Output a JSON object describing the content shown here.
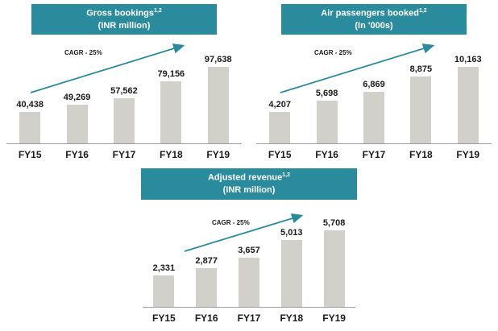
{
  "colors": {
    "accent": "#2a8b9d",
    "bar": "#d2d0ca",
    "text": "#1a1a1a"
  },
  "chart_data": [
    {
      "type": "bar",
      "title": "Gross bookings",
      "title_superscript": "1,2",
      "subtitle": "(INR million)",
      "annotation": "CAGR - 25%",
      "categories": [
        "FY15",
        "FY16",
        "FY17",
        "FY18",
        "FY19"
      ],
      "values": [
        40438,
        49269,
        57562,
        79156,
        97638
      ],
      "value_labels": [
        "40,438",
        "49,269",
        "57,562",
        "79,156",
        "97,638"
      ],
      "xlabel": "",
      "ylabel": "",
      "ylim": [
        0,
        100000
      ],
      "grid": false,
      "legend": "none"
    },
    {
      "type": "bar",
      "title": "Air passengers booked",
      "title_superscript": "1,2",
      "subtitle": "(In '000s)",
      "annotation": "CAGR - 25%",
      "categories": [
        "FY15",
        "FY16",
        "FY17",
        "FY18",
        "FY19"
      ],
      "values": [
        4207,
        5698,
        6869,
        8875,
        10163
      ],
      "value_labels": [
        "4,207",
        "5,698",
        "6,869",
        "8,875",
        "10,163"
      ],
      "xlabel": "",
      "ylabel": "",
      "ylim": [
        0,
        11000
      ],
      "grid": false,
      "legend": "none"
    },
    {
      "type": "bar",
      "title": "Adjusted revenue",
      "title_superscript": "1,2",
      "subtitle": "(INR million)",
      "annotation": "CAGR - 25%",
      "categories": [
        "FY15",
        "FY16",
        "FY17",
        "FY18",
        "FY19"
      ],
      "values": [
        2331,
        2877,
        3657,
        5013,
        5708
      ],
      "value_labels": [
        "2,331",
        "2,877",
        "3,657",
        "5,013",
        "5,708"
      ],
      "xlabel": "",
      "ylabel": "",
      "ylim": [
        0,
        6000
      ],
      "grid": false,
      "legend": "none"
    }
  ]
}
